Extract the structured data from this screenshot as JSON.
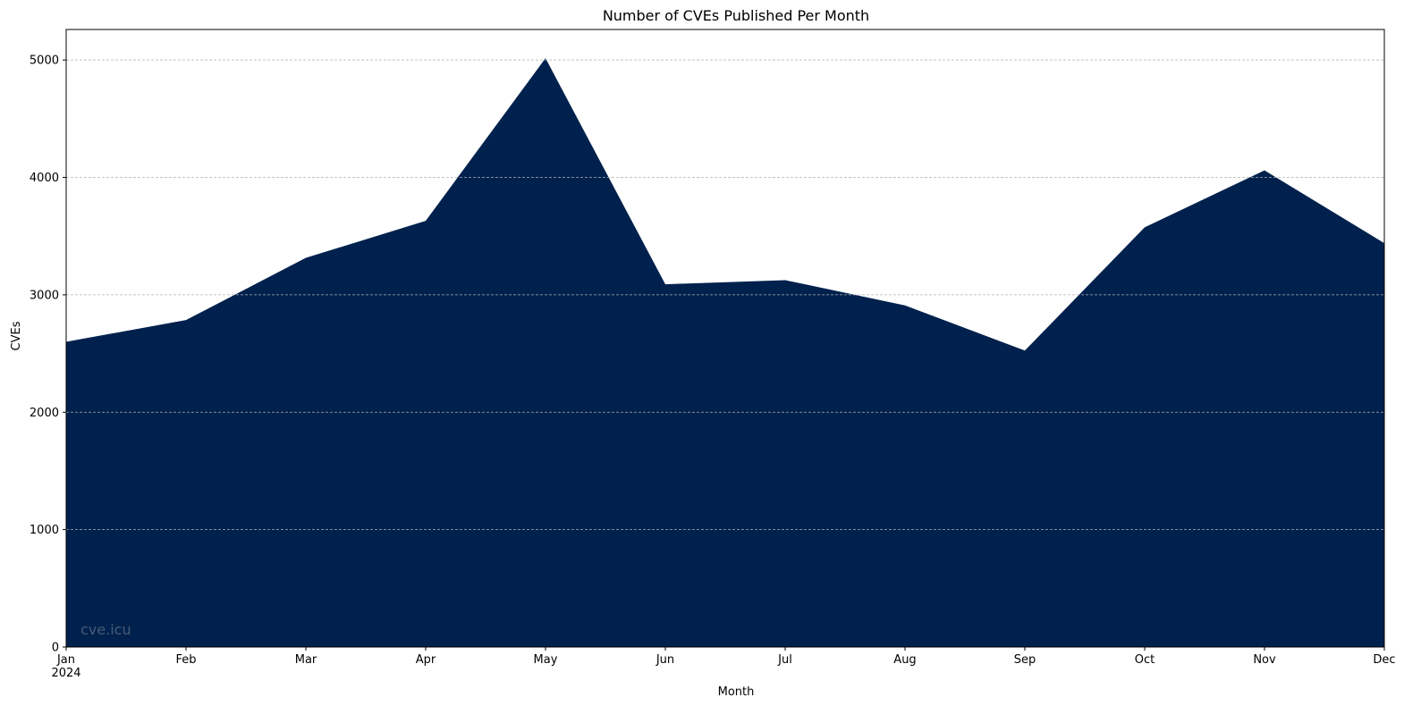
{
  "chart_data": {
    "type": "area",
    "title": "Number of CVEs Published Per Month",
    "xlabel": "Month",
    "ylabel": "CVEs",
    "categories": [
      "Jan",
      "Feb",
      "Mar",
      "Apr",
      "May",
      "Jun",
      "Jul",
      "Aug",
      "Sep",
      "Oct",
      "Nov",
      "Dec"
    ],
    "year_label": "2024",
    "values": [
      2600,
      2785,
      3315,
      3630,
      5015,
      3090,
      3125,
      2910,
      2525,
      3575,
      4060,
      3440
    ],
    "ylim": [
      0,
      5260
    ],
    "yticks": [
      0,
      1000,
      2000,
      3000,
      4000,
      5000
    ],
    "grid": "horizontal-dashed",
    "fill_color": "#00214d",
    "watermark": "cve.icu",
    "watermark_color": "#4a5a78"
  }
}
